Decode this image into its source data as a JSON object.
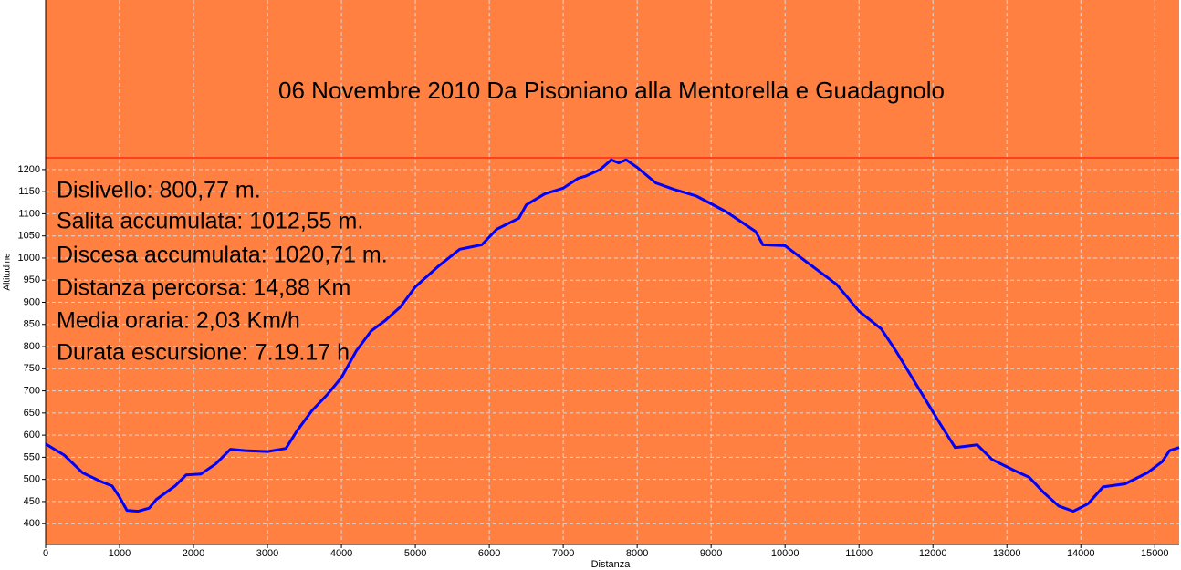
{
  "chart_data": {
    "type": "line",
    "title": "06 Novembre 2010 Da Pisoniano alla Mentorella e Guadagnolo",
    "x_label": "Distanza",
    "y_label": "Altitudine",
    "annotations": [
      "Dislivello: 800,77 m.",
      "Salita accumulata: 1012,55 m.",
      "Discesa accumulata: 1020,71 m.",
      "Distanza percorsa: 14,88 Km",
      "Media oraria: 2,03 Km/h",
      "Durata escursione: 7.19.17 h"
    ],
    "background": "#ff8040",
    "grid": true,
    "xlim": [
      0,
      15330
    ],
    "ylim": [
      353,
      1583
    ],
    "xticks": [
      0,
      1000,
      2000,
      3000,
      4000,
      5000,
      6000,
      7000,
      8000,
      9000,
      10000,
      11000,
      12000,
      13000,
      14000,
      15000
    ],
    "yticks": [
      400,
      450,
      500,
      550,
      600,
      650,
      700,
      750,
      800,
      850,
      900,
      950,
      1000,
      1050,
      1100,
      1150,
      1200
    ],
    "series": [
      {
        "color": "#0000ff",
        "x": [
          0,
          250,
          500,
          750,
          900,
          1000,
          1100,
          1250,
          1400,
          1500,
          1750,
          1900,
          2100,
          2300,
          2500,
          2700,
          3000,
          3250,
          3400,
          3600,
          3800,
          4000,
          4200,
          4400,
          4600,
          4800,
          5000,
          5300,
          5600,
          5900,
          6100,
          6400,
          6500,
          6750,
          7000,
          7200,
          7300,
          7500,
          7650,
          7750,
          7850,
          8000,
          8250,
          8500,
          8800,
          9200,
          9600,
          9700,
          10000,
          10300,
          10700,
          11000,
          11300,
          11500,
          11700,
          11900,
          12100,
          12300,
          12600,
          12800,
          13100,
          13300,
          13500,
          13700,
          13900,
          14100,
          14300,
          14600,
          14900,
          15100,
          15200,
          15330
        ],
        "values": [
          580,
          555,
          515,
          495,
          485,
          460,
          430,
          428,
          435,
          455,
          485,
          510,
          512,
          535,
          568,
          565,
          563,
          570,
          610,
          655,
          690,
          730,
          790,
          835,
          860,
          890,
          935,
          980,
          1020,
          1030,
          1065,
          1090,
          1120,
          1145,
          1158,
          1180,
          1185,
          1200,
          1222,
          1215,
          1222,
          1205,
          1170,
          1155,
          1140,
          1105,
          1060,
          1030,
          1028,
          990,
          940,
          880,
          840,
          790,
          735,
          680,
          625,
          572,
          578,
          545,
          520,
          505,
          470,
          440,
          428,
          445,
          483,
          490,
          515,
          540,
          565,
          572
        ]
      }
    ]
  }
}
